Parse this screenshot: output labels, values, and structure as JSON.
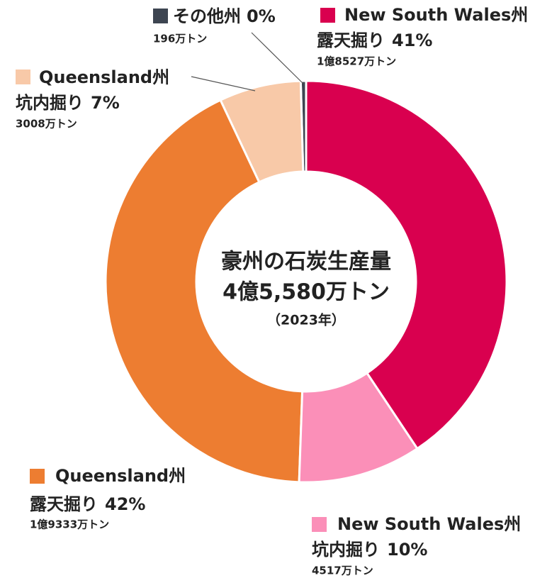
{
  "chart_data": {
    "type": "donut",
    "title": "豪州の石炭生産量",
    "total_label": "4億5,580万トン",
    "subtitle": "（2023年）",
    "categories": [
      "New South Wales州",
      "New South Wales州",
      "Queensland州",
      "Queensland州",
      "その他州"
    ],
    "methods": [
      "露天掘り",
      "坑内掘り",
      "露天掘り",
      "坑内掘り",
      null
    ],
    "values": [
      18527,
      4517,
      19333,
      3008,
      196
    ],
    "value_labels": [
      "1億8527万トン",
      "4517万トン",
      "1億9333万トン",
      "3008万トン",
      "196万トン"
    ],
    "percents": [
      41,
      10,
      42,
      7,
      0
    ],
    "percent_labels": [
      "41%",
      "10%",
      "42%",
      "7%",
      "0%"
    ],
    "colors": [
      "#d9004f",
      "#fb8fb8",
      "#ed7d31",
      "#f8c9a8",
      "#3d4551"
    ]
  }
}
